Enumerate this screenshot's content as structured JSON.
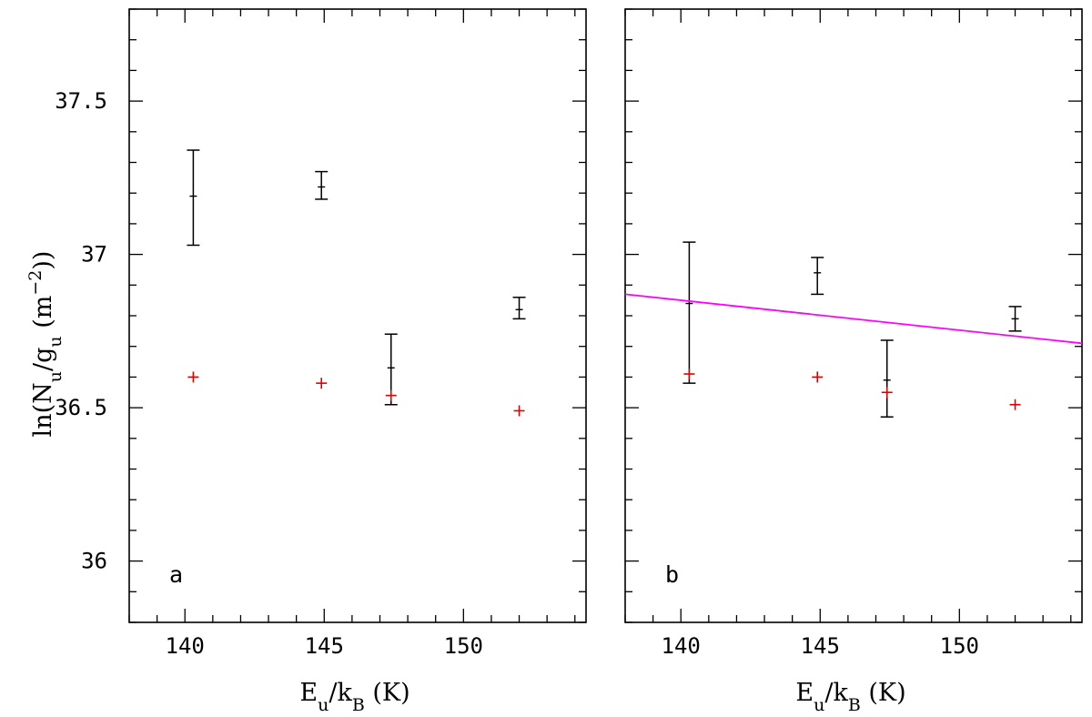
{
  "chart_data": [
    {
      "type": "scatter",
      "panel_label": "a",
      "xlabel": "E_u/k_B (K)",
      "ylabel": "ln(N_u/g_u (m^-2))",
      "xlim": [
        138,
        154.4
      ],
      "ylim": [
        35.8,
        37.8
      ],
      "xticks_major": [
        140,
        145,
        150
      ],
      "yticks_major": [
        36,
        36.5,
        37,
        37.5
      ],
      "ytick_labels": [
        "36",
        "36.5",
        "37",
        "37.5"
      ],
      "xtick_labels": [
        "140",
        "145",
        "150"
      ],
      "series": [
        {
          "style": "black-errorbar",
          "color": "#000000",
          "points": [
            {
              "x": 140.3,
              "y": 37.19,
              "ylow": 37.03,
              "yhigh": 37.34
            },
            {
              "x": 144.9,
              "y": 37.22,
              "ylow": 37.18,
              "yhigh": 37.27
            },
            {
              "x": 147.4,
              "y": 36.63,
              "ylow": 36.51,
              "yhigh": 36.74
            },
            {
              "x": 152.0,
              "y": 36.82,
              "ylow": 36.79,
              "yhigh": 36.86
            }
          ]
        },
        {
          "style": "red-plus",
          "color": "#e00000",
          "points": [
            {
              "x": 140.3,
              "y": 36.6
            },
            {
              "x": 144.9,
              "y": 36.58
            },
            {
              "x": 147.4,
              "y": 36.54
            },
            {
              "x": 152.0,
              "y": 36.49
            }
          ]
        }
      ],
      "grid": false
    },
    {
      "type": "scatter",
      "panel_label": "b",
      "xlabel": "E_u/k_B (K)",
      "ylabel": "",
      "xlim": [
        138,
        154.4
      ],
      "ylim": [
        35.8,
        37.8
      ],
      "xticks_major": [
        140,
        145,
        150
      ],
      "yticks_major": [
        36,
        36.5,
        37,
        37.5
      ],
      "xtick_labels": [
        "140",
        "145",
        "150"
      ],
      "series": [
        {
          "style": "black-errorbar",
          "color": "#000000",
          "points": [
            {
              "x": 140.3,
              "y": 36.84,
              "ylow": 36.58,
              "yhigh": 37.04
            },
            {
              "x": 144.9,
              "y": 36.94,
              "ylow": 36.87,
              "yhigh": 36.99
            },
            {
              "x": 147.4,
              "y": 36.59,
              "ylow": 36.47,
              "yhigh": 36.72
            },
            {
              "x": 152.0,
              "y": 36.79,
              "ylow": 36.75,
              "yhigh": 36.83
            }
          ]
        },
        {
          "style": "red-plus",
          "color": "#e00000",
          "points": [
            {
              "x": 140.3,
              "y": 36.61
            },
            {
              "x": 144.9,
              "y": 36.6
            },
            {
              "x": 147.4,
              "y": 36.55
            },
            {
              "x": 152.0,
              "y": 36.51
            }
          ]
        },
        {
          "style": "fit-line",
          "color": "#ff00ff",
          "line": [
            {
              "x": 138.0,
              "y": 36.87
            },
            {
              "x": 154.4,
              "y": 36.71
            }
          ]
        }
      ],
      "grid": false
    }
  ]
}
